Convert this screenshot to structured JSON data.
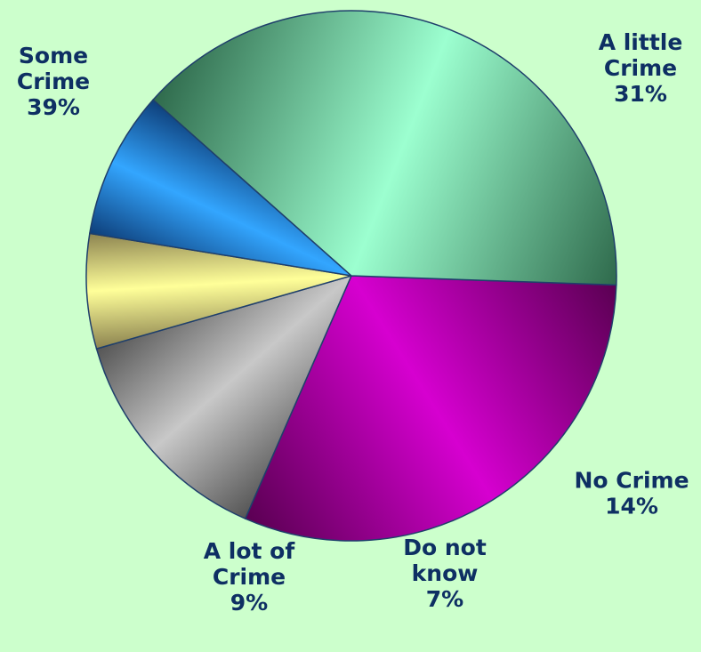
{
  "page": {
    "background": "#ccffcc"
  },
  "chart_data": {
    "type": "pie",
    "title": "",
    "start_angle_deg": 92,
    "direction": "clockwise",
    "slices": [
      {
        "label_lines": [
          "A little",
          "Crime"
        ],
        "value": 31,
        "value_text": "31%",
        "color": "#a8008c",
        "highlight": "#d600d0",
        "shadow": "#5a0052"
      },
      {
        "label_lines": [
          "No Crime"
        ],
        "value": 14,
        "value_text": "14%",
        "color": "#8a8a8a",
        "highlight": "#c8c8c8",
        "shadow": "#555555"
      },
      {
        "label_lines": [
          "Do not",
          "know"
        ],
        "value": 7,
        "value_text": "7%",
        "color": "#d8d08a",
        "highlight": "#ffff99",
        "shadow": "#8c8350"
      },
      {
        "label_lines": [
          "A lot of",
          "Crime"
        ],
        "value": 9,
        "value_text": "9%",
        "color": "#1e78d8",
        "highlight": "#33a6ff",
        "shadow": "#0e3f7a"
      },
      {
        "label_lines": [
          "Some",
          "Crime"
        ],
        "value": 39,
        "value_text": "39%",
        "color": "#5ea885",
        "highlight": "#9cffd0",
        "shadow": "#2f6a4c"
      }
    ]
  }
}
